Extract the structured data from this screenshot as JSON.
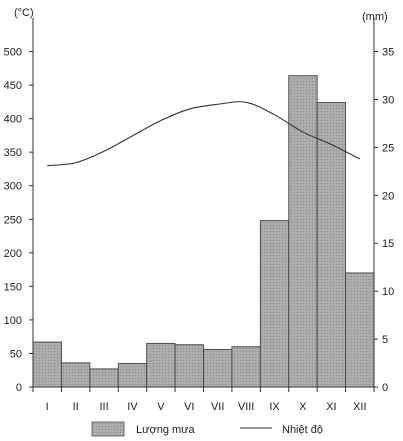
{
  "chart_data": {
    "type": "bar",
    "categories": [
      "I",
      "II",
      "III",
      "IV",
      "V",
      "VI",
      "VII",
      "VIII",
      "IX",
      "X",
      "XI",
      "XII"
    ],
    "left_axis": {
      "unit": "(°C)",
      "ticks": [
        0,
        50,
        100,
        150,
        200,
        250,
        300,
        350,
        400,
        450,
        500
      ],
      "ylim": [
        0,
        550
      ]
    },
    "right_axis": {
      "unit": "(mm)",
      "ticks": [
        0,
        5,
        10,
        15,
        20,
        25,
        30,
        35
      ],
      "ylim": [
        0,
        38.5
      ]
    },
    "series": [
      {
        "name": "Lượng mưa",
        "kind": "bar",
        "axis": "left",
        "color": "#a8a8a8",
        "values": [
          67,
          36,
          27,
          35,
          65,
          63,
          56,
          60,
          248,
          464,
          424,
          170
        ]
      },
      {
        "name": "Nhiệt độ",
        "kind": "line",
        "axis": "right",
        "color": "#333333",
        "values": [
          23.1,
          23.4,
          24.6,
          26.2,
          27.8,
          29.0,
          29.5,
          29.7,
          28.4,
          26.6,
          25.3,
          23.8
        ]
      }
    ],
    "legend": {
      "placement": "bottom",
      "items": [
        {
          "label": "Lượng mưa",
          "kind": "bar"
        },
        {
          "label": "Nhiệt độ",
          "kind": "line"
        }
      ]
    },
    "grid": false
  }
}
